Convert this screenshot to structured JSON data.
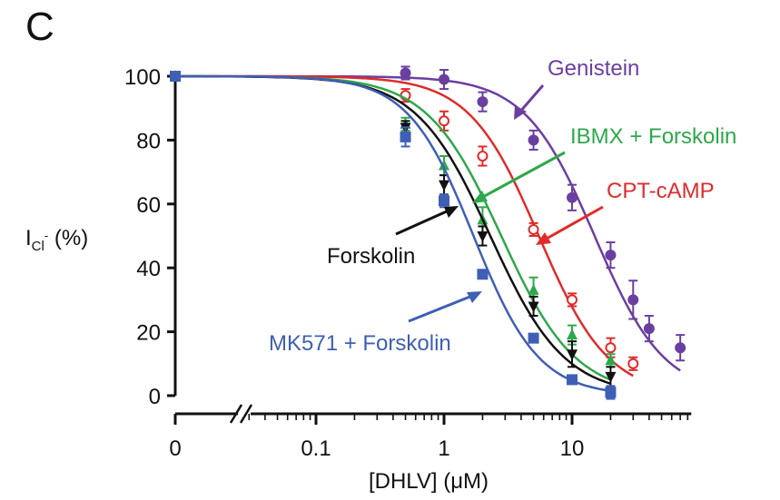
{
  "panel_letter": "C",
  "chart_data": {
    "type": "scatter",
    "xlabel": "[DHLV] (μM)",
    "ylabel_main": "I",
    "ylabel_sub": "Cl",
    "ylabel_sup": "-",
    "ylabel_suffix": " (%)",
    "x_scale": "log with broken axis; 0 shown separately",
    "x_ticks": [
      "0",
      "0.1",
      "1",
      "10"
    ],
    "y_ticks": [
      "0",
      "20",
      "40",
      "60",
      "80",
      "100"
    ],
    "ylim": [
      0,
      100
    ],
    "series": [
      {
        "name": "Genistein",
        "color": "#6b3fa0",
        "marker": "circle-filled",
        "ic50": 15,
        "hill": 1.6,
        "points": [
          {
            "x": 0,
            "y": 100,
            "err": 0
          },
          {
            "x": 0.5,
            "y": 101,
            "err": 2
          },
          {
            "x": 1,
            "y": 99,
            "err": 3
          },
          {
            "x": 2,
            "y": 92,
            "err": 3
          },
          {
            "x": 5,
            "y": 80,
            "err": 3
          },
          {
            "x": 10,
            "y": 62,
            "err": 4
          },
          {
            "x": 20,
            "y": 44,
            "err": 4
          },
          {
            "x": 30,
            "y": 30,
            "err": 6
          },
          {
            "x": 40,
            "y": 21,
            "err": 4
          },
          {
            "x": 70,
            "y": 15,
            "err": 4
          }
        ]
      },
      {
        "name": "IBMX + Forskolin",
        "color": "#2ea84a",
        "marker": "triangle-filled",
        "ic50": 2.8,
        "hill": 1.5,
        "points": [
          {
            "x": 0,
            "y": 100,
            "err": 0
          },
          {
            "x": 0.5,
            "y": 85,
            "err": 2
          },
          {
            "x": 1,
            "y": 72,
            "err": 3
          },
          {
            "x": 2,
            "y": 55,
            "err": 4
          },
          {
            "x": 5,
            "y": 33,
            "err": 4
          },
          {
            "x": 10,
            "y": 19,
            "err": 3
          },
          {
            "x": 20,
            "y": 11,
            "err": 2
          }
        ]
      },
      {
        "name": "CPT-cAMP",
        "color": "#e02b2b",
        "marker": "circle-open",
        "ic50": 5.5,
        "hill": 1.6,
        "points": [
          {
            "x": 0,
            "y": 100,
            "err": 0
          },
          {
            "x": 0.5,
            "y": 94,
            "err": 2
          },
          {
            "x": 1,
            "y": 86,
            "err": 3
          },
          {
            "x": 2,
            "y": 75,
            "err": 3
          },
          {
            "x": 5,
            "y": 52,
            "err": 2
          },
          {
            "x": 10,
            "y": 30,
            "err": 2
          },
          {
            "x": 20,
            "y": 15,
            "err": 3
          },
          {
            "x": 30,
            "y": 10,
            "err": 2
          }
        ]
      },
      {
        "name": "Forskolin",
        "color": "#111111",
        "marker": "triangle-down-filled",
        "ic50": 2.3,
        "hill": 1.5,
        "points": [
          {
            "x": 0,
            "y": 100,
            "err": 0
          },
          {
            "x": 0.5,
            "y": 84,
            "err": 2
          },
          {
            "x": 1,
            "y": 66,
            "err": 3
          },
          {
            "x": 2,
            "y": 50,
            "err": 3
          },
          {
            "x": 5,
            "y": 28,
            "err": 3
          },
          {
            "x": 10,
            "y": 13,
            "err": 4
          },
          {
            "x": 20,
            "y": 6,
            "err": 3
          }
        ]
      },
      {
        "name": "MK571 + Forskolin",
        "color": "#3f5fb5",
        "marker": "square-filled",
        "ic50": 1.7,
        "hill": 1.7,
        "points": [
          {
            "x": 0,
            "y": 100,
            "err": 0
          },
          {
            "x": 0.5,
            "y": 81,
            "err": 3
          },
          {
            "x": 1,
            "y": 61,
            "err": 2
          },
          {
            "x": 2,
            "y": 38,
            "err": 1
          },
          {
            "x": 5,
            "y": 18,
            "err": 1
          },
          {
            "x": 10,
            "y": 5,
            "err": 1
          },
          {
            "x": 20,
            "y": 1,
            "err": 2
          }
        ]
      }
    ]
  }
}
